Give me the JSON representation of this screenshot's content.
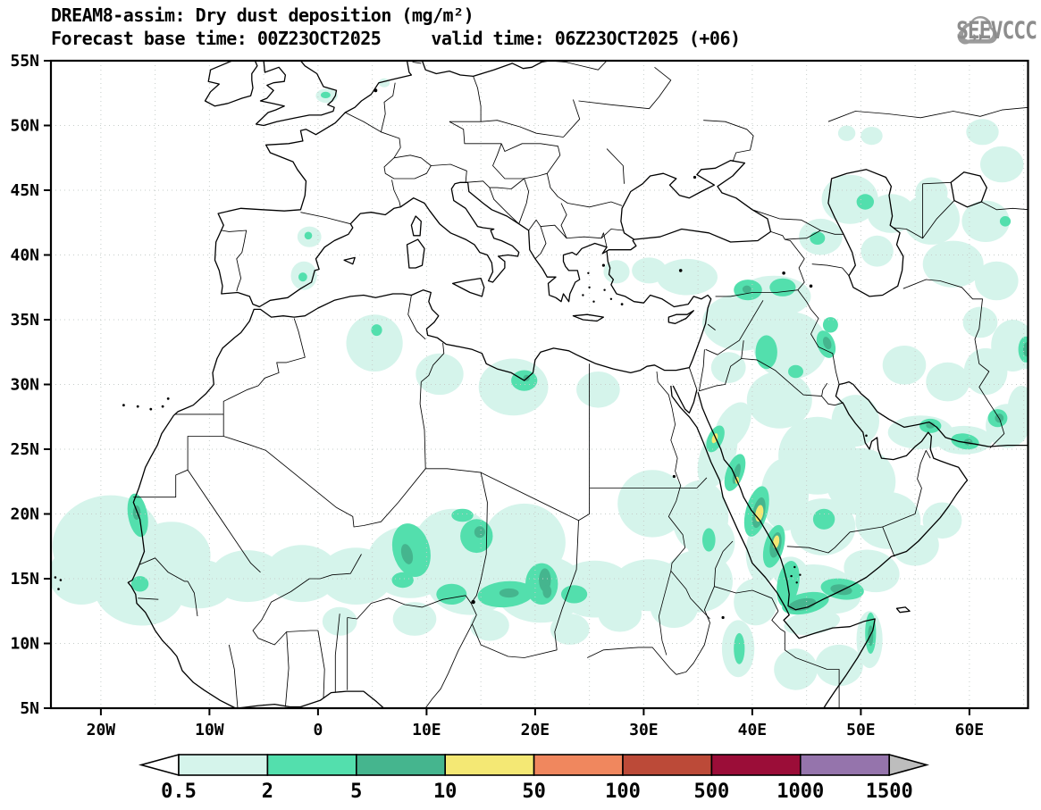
{
  "header": {
    "title_line1": "DREAM8-assim: Dry dust deposition (mg/m²)",
    "title_line2_left": "Forecast base time: 00Z23OCT2025",
    "title_line2_right": "valid time: 06Z23OCT2025 (+06)"
  },
  "logo": {
    "text": "SEEVCCC"
  },
  "chart_data": {
    "type": "map-contour",
    "title": "DREAM8-assim: Dry dust deposition (mg/m²)",
    "model": "DREAM8-assim",
    "variable": "Dry dust deposition",
    "units": "mg/m²",
    "forecast_base_time": "00Z23OCT2025",
    "valid_time": "06Z23OCT2025",
    "forecast_hour": "+06",
    "lon_range": [
      -24.6,
      65.4
    ],
    "lat_range": [
      5,
      55
    ],
    "graticule_deg": 5,
    "x_ticks": [
      {
        "value": -20,
        "label": "20W"
      },
      {
        "value": -10,
        "label": "10W"
      },
      {
        "value": 0,
        "label": "0"
      },
      {
        "value": 10,
        "label": "10E"
      },
      {
        "value": 20,
        "label": "20E"
      },
      {
        "value": 30,
        "label": "30E"
      },
      {
        "value": 40,
        "label": "40E"
      },
      {
        "value": 50,
        "label": "50E"
      },
      {
        "value": 60,
        "label": "60E"
      }
    ],
    "y_ticks": [
      {
        "value": 5,
        "label": "5N"
      },
      {
        "value": 10,
        "label": "10N"
      },
      {
        "value": 15,
        "label": "15N"
      },
      {
        "value": 20,
        "label": "20N"
      },
      {
        "value": 25,
        "label": "25N"
      },
      {
        "value": 30,
        "label": "30N"
      },
      {
        "value": 35,
        "label": "35N"
      },
      {
        "value": 40,
        "label": "40N"
      },
      {
        "value": 45,
        "label": "45N"
      },
      {
        "value": 50,
        "label": "50N"
      },
      {
        "value": 55,
        "label": "55N"
      }
    ],
    "legend": {
      "tick_labels": [
        "0.5",
        "2",
        "5",
        "10",
        "50",
        "100",
        "500",
        "1000",
        "1500"
      ],
      "colors": [
        "#ffffff",
        "#d5f4eb",
        "#53dfad",
        "#45b58e",
        "#f4e874",
        "#f0875e",
        "#bc4a38",
        "#9b0d38",
        "#9574ac",
        "#bdbdbd"
      ]
    },
    "dust_levels": [
      {
        "range": "0.5-2",
        "color": "#d5f4eb"
      },
      {
        "range": "2-5",
        "color": "#53dfad"
      },
      {
        "range": "5-10",
        "color": "#45b58e"
      },
      {
        "range": "10-50",
        "color": "#f4e874"
      }
    ],
    "dust_regions_columns": [
      "lon",
      "lat",
      "rx_deg",
      "ry_deg",
      "rotate_deg",
      "level"
    ],
    "dust_regions": [
      [
        -19.5,
        17.8,
        5,
        3.6,
        -15,
        1
      ],
      [
        -21.8,
        15.3,
        3,
        2.3,
        0,
        1
      ],
      [
        -16.5,
        14.2,
        4.2,
        2.8,
        10,
        1
      ],
      [
        -13.5,
        16.8,
        3.6,
        2.6,
        0,
        1
      ],
      [
        -11,
        14.6,
        3.2,
        1.9,
        0,
        1
      ],
      [
        -6.5,
        15.2,
        3.4,
        2,
        0,
        1
      ],
      [
        -1.5,
        15.4,
        3.4,
        2.2,
        0,
        1
      ],
      [
        3.5,
        15.2,
        3.4,
        2.2,
        0,
        1
      ],
      [
        8.5,
        16.3,
        4,
        2.8,
        0,
        1
      ],
      [
        12.5,
        17.8,
        3.6,
        2.6,
        0,
        1
      ],
      [
        14,
        14.8,
        4,
        2.6,
        0,
        1
      ],
      [
        19,
        17.8,
        3.8,
        3,
        0,
        1
      ],
      [
        20.5,
        14.2,
        4.2,
        2.6,
        0,
        1
      ],
      [
        25.5,
        14.2,
        3.6,
        2.2,
        0,
        1
      ],
      [
        30.5,
        14.5,
        3.4,
        2,
        0,
        1
      ],
      [
        35,
        14.8,
        3.2,
        2.4,
        0,
        1
      ],
      [
        30.8,
        20.8,
        3.2,
        2.6,
        0,
        1
      ],
      [
        35.2,
        19.8,
        2.6,
        2.8,
        0,
        1
      ],
      [
        36.8,
        24.5,
        1.6,
        2.6,
        20,
        1
      ],
      [
        38.2,
        26.8,
        1.4,
        2,
        30,
        1
      ],
      [
        5.2,
        33.2,
        2.6,
        2.2,
        0,
        1
      ],
      [
        11.2,
        30.8,
        2.2,
        1.6,
        0,
        1
      ],
      [
        18,
        29.8,
        3.2,
        2.2,
        0,
        1
      ],
      [
        25.8,
        29.6,
        2,
        1.4,
        0,
        1
      ],
      [
        -0.8,
        41.4,
        1.1,
        0.8,
        0,
        1
      ],
      [
        -1.3,
        38.4,
        1.2,
        1.1,
        0,
        1
      ],
      [
        0.8,
        52.3,
        1,
        0.55,
        0,
        1
      ],
      [
        6.1,
        53.3,
        0.5,
        0.35,
        0,
        1
      ],
      [
        39,
        34.8,
        3.6,
        2.2,
        0,
        1
      ],
      [
        43.5,
        33,
        3.4,
        2.6,
        0,
        1
      ],
      [
        42,
        36.8,
        3.4,
        1.6,
        0,
        1
      ],
      [
        34,
        38.3,
        2.8,
        1.4,
        0,
        1
      ],
      [
        30.5,
        38.8,
        1.6,
        1,
        0,
        1
      ],
      [
        27.5,
        38.7,
        1.2,
        0.9,
        0,
        1
      ],
      [
        42.5,
        28.8,
        3,
        2.2,
        0,
        1
      ],
      [
        46,
        24.5,
        3.6,
        3,
        0,
        1
      ],
      [
        50,
        22.5,
        3.2,
        2.6,
        0,
        1
      ],
      [
        49.5,
        27.2,
        2.2,
        2,
        0,
        1
      ],
      [
        52.5,
        19.5,
        3,
        2.2,
        0,
        1
      ],
      [
        46.5,
        19,
        3,
        2.2,
        0,
        1
      ],
      [
        43,
        21.5,
        2.2,
        2.8,
        0,
        1
      ],
      [
        46.5,
        14.2,
        3.6,
        1.8,
        15,
        1
      ],
      [
        51,
        15.6,
        2.6,
        1.6,
        15,
        1
      ],
      [
        55,
        17.6,
        2.2,
        1.6,
        0,
        1
      ],
      [
        57.5,
        19.5,
        1.8,
        1.4,
        0,
        1
      ],
      [
        48,
        8.3,
        2.2,
        1.6,
        0,
        1
      ],
      [
        44,
        8,
        2,
        1.6,
        0,
        1
      ],
      [
        50.8,
        10.3,
        1.2,
        2.2,
        0,
        1
      ],
      [
        38.7,
        9.6,
        1.5,
        2.2,
        0,
        1
      ],
      [
        40.3,
        13.2,
        2,
        1.8,
        0,
        1
      ],
      [
        55.5,
        26.3,
        3,
        1.3,
        0,
        1
      ],
      [
        59.5,
        25.7,
        2.6,
        1.1,
        0,
        1
      ],
      [
        63.5,
        26.8,
        2,
        1.7,
        0,
        1
      ],
      [
        54,
        31.5,
        2,
        1.5,
        0,
        1
      ],
      [
        58,
        30.2,
        2,
        1.5,
        0,
        1
      ],
      [
        61.5,
        31,
        2,
        1.8,
        0,
        1
      ],
      [
        64,
        33,
        2,
        2,
        0,
        1
      ],
      [
        61,
        34.8,
        1.6,
        1.2,
        0,
        1
      ],
      [
        49,
        44.3,
        2.6,
        1.9,
        0,
        1
      ],
      [
        52.8,
        43.2,
        2.2,
        1.5,
        0,
        1
      ],
      [
        56.5,
        42.8,
        2.6,
        2,
        0,
        1
      ],
      [
        61.5,
        42.6,
        2.2,
        1.6,
        0,
        1
      ],
      [
        46.3,
        41.4,
        2,
        1.4,
        0,
        1
      ],
      [
        51.5,
        40.3,
        1.5,
        1.2,
        0,
        1
      ],
      [
        58.5,
        39.3,
        2.8,
        1.8,
        0,
        1
      ],
      [
        62.5,
        38,
        2,
        1.5,
        0,
        1
      ],
      [
        56.5,
        44.8,
        1.5,
        1.2,
        0,
        1
      ],
      [
        63,
        47,
        2,
        1.4,
        0,
        1
      ],
      [
        61.2,
        49.5,
        1.5,
        1,
        0,
        1
      ],
      [
        51,
        49.2,
        1,
        0.7,
        0,
        1
      ],
      [
        48.7,
        49.4,
        0.8,
        0.6,
        0,
        1
      ],
      [
        64.8,
        28,
        1.3,
        1.9,
        0,
        1
      ],
      [
        37.8,
        31.3,
        1.6,
        1.2,
        0,
        1
      ],
      [
        36.2,
        17.8,
        2.2,
        2,
        0,
        1
      ],
      [
        41,
        17,
        1.6,
        2.4,
        0,
        1
      ],
      [
        43.5,
        15.5,
        1.6,
        1.2,
        0,
        1
      ],
      [
        65.2,
        32.8,
        1.2,
        1.6,
        0,
        1
      ],
      [
        45.5,
        11.6,
        2.6,
        0.9,
        -8,
        1
      ],
      [
        32.8,
        12.8,
        2.2,
        1.6,
        0,
        1
      ],
      [
        27.8,
        12.3,
        2,
        1.4,
        0,
        1
      ],
      [
        23.2,
        11.1,
        1.8,
        1.2,
        0,
        1
      ],
      [
        15.8,
        11.4,
        1.8,
        1.2,
        0,
        1
      ],
      [
        8.9,
        11.9,
        2,
        1.3,
        0,
        1
      ],
      [
        2,
        11.7,
        1.6,
        1.1,
        0,
        1
      ],
      [
        -16.6,
        19.9,
        0.9,
        1.7,
        -10,
        2
      ],
      [
        -16.4,
        14.6,
        0.8,
        0.6,
        0,
        2
      ],
      [
        8.6,
        17.2,
        1.7,
        2.1,
        -15,
        2
      ],
      [
        7.8,
        14.9,
        1,
        0.6,
        0,
        2
      ],
      [
        14.6,
        18.3,
        1.5,
        1.3,
        0,
        2
      ],
      [
        13.3,
        19.9,
        1,
        0.5,
        0,
        2
      ],
      [
        12.3,
        13.8,
        1.4,
        0.8,
        0,
        2
      ],
      [
        17.3,
        13.8,
        2.6,
        1,
        -5,
        2
      ],
      [
        20.6,
        14.6,
        1.5,
        1.6,
        0,
        2
      ],
      [
        23.6,
        13.8,
        1.2,
        0.7,
        0,
        2
      ],
      [
        19,
        30.3,
        1.2,
        0.8,
        0,
        2
      ],
      [
        5.4,
        34.2,
        0.5,
        0.45,
        0,
        2
      ],
      [
        -0.9,
        41.5,
        0.35,
        0.3,
        0,
        2
      ],
      [
        -1.4,
        38.3,
        0.4,
        0.35,
        0,
        2
      ],
      [
        36.6,
        25.8,
        0.7,
        1.1,
        25,
        2
      ],
      [
        38.4,
        23.2,
        0.8,
        1.5,
        20,
        2
      ],
      [
        40.4,
        20.2,
        1,
        2,
        15,
        2
      ],
      [
        42,
        17.5,
        0.9,
        1.7,
        15,
        2
      ],
      [
        43.3,
        14.6,
        1,
        1.8,
        10,
        2
      ],
      [
        44.9,
        13.1,
        2.2,
        0.8,
        -12,
        2
      ],
      [
        48.3,
        14.2,
        2,
        0.8,
        8,
        2
      ],
      [
        50.9,
        10.8,
        0.5,
        1.6,
        0,
        2
      ],
      [
        38.8,
        9.6,
        0.5,
        1.2,
        0,
        2
      ],
      [
        39.6,
        37.3,
        1.3,
        0.8,
        0,
        2
      ],
      [
        42.8,
        37.5,
        1.2,
        0.7,
        0,
        2
      ],
      [
        41.3,
        32.5,
        1,
        1.3,
        0,
        2
      ],
      [
        46.8,
        33.1,
        0.8,
        1.1,
        -20,
        2
      ],
      [
        47.2,
        34.6,
        0.7,
        0.6,
        0,
        2
      ],
      [
        44,
        31,
        0.7,
        0.5,
        0,
        2
      ],
      [
        56.4,
        26.8,
        1,
        0.55,
        0,
        2
      ],
      [
        59.6,
        25.6,
        1.3,
        0.6,
        10,
        2
      ],
      [
        62.6,
        27.4,
        0.9,
        0.7,
        0,
        2
      ],
      [
        65.2,
        32.7,
        0.7,
        1,
        0,
        2
      ],
      [
        50.4,
        44.1,
        0.8,
        0.6,
        0,
        2
      ],
      [
        46,
        41.3,
        0.7,
        0.5,
        0,
        2
      ],
      [
        63.3,
        42.6,
        0.5,
        0.4,
        0,
        2
      ],
      [
        46.6,
        19.6,
        1,
        0.8,
        0,
        2
      ],
      [
        36,
        18,
        0.6,
        0.9,
        0,
        2
      ],
      [
        0.7,
        52.35,
        0.45,
        0.25,
        0,
        2
      ],
      [
        -16.7,
        20.1,
        0.35,
        0.55,
        0,
        3
      ],
      [
        8.2,
        16.9,
        0.5,
        0.8,
        -15,
        3
      ],
      [
        14.9,
        18.6,
        0.5,
        0.45,
        0,
        3
      ],
      [
        20.9,
        14.9,
        0.55,
        0.9,
        0,
        3
      ],
      [
        21.1,
        14,
        0.4,
        0.5,
        0,
        3
      ],
      [
        17.6,
        13.9,
        0.9,
        0.35,
        0,
        3
      ],
      [
        19.2,
        30.5,
        0.3,
        0.25,
        0,
        3
      ],
      [
        38.55,
        23.1,
        0.3,
        0.8,
        15,
        3
      ],
      [
        40.6,
        20.1,
        0.55,
        1.2,
        12,
        3
      ],
      [
        42.15,
        17.6,
        0.5,
        1,
        12,
        3
      ],
      [
        44.6,
        13,
        1.3,
        0.45,
        -12,
        3
      ],
      [
        48.2,
        14.15,
        1,
        0.4,
        8,
        3
      ],
      [
        39.5,
        37.35,
        0.4,
        0.3,
        0,
        3
      ],
      [
        46.9,
        33.2,
        0.35,
        0.5,
        -20,
        3
      ],
      [
        56.4,
        26.85,
        0.4,
        0.25,
        0,
        3
      ],
      [
        62.75,
        27.4,
        0.4,
        0.35,
        0,
        3
      ],
      [
        65.3,
        32.7,
        0.35,
        0.55,
        0,
        3
      ],
      [
        50.9,
        10.6,
        0.25,
        0.8,
        0,
        3
      ],
      [
        59.9,
        25.55,
        0.4,
        0.25,
        5,
        3
      ],
      [
        36.55,
        25.85,
        0.25,
        0.4,
        20,
        4
      ],
      [
        38.6,
        22.6,
        0.18,
        0.28,
        0,
        4
      ],
      [
        40.65,
        20.05,
        0.35,
        0.65,
        10,
        4
      ],
      [
        42.2,
        17.85,
        0.28,
        0.5,
        10,
        4
      ]
    ]
  }
}
